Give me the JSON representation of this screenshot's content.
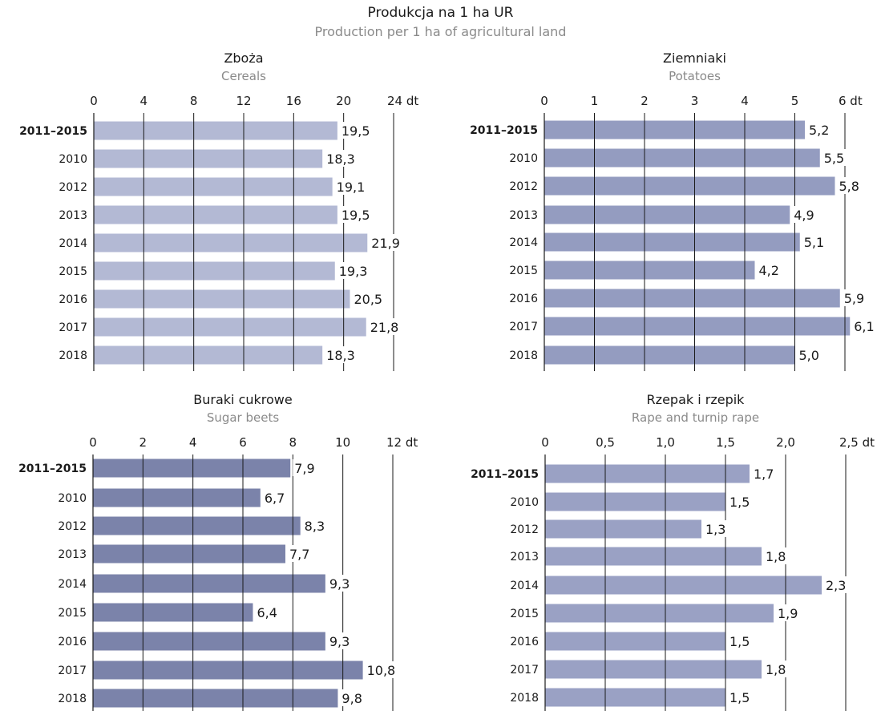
{
  "title": "Produkcja na 1 ha UR",
  "subtitle": "Production per 1 ha of agricultural land",
  "chart_data": [
    {
      "type": "bar",
      "orientation": "horizontal",
      "title": "Zboża",
      "subtitle": "Cereals",
      "unit": "dt",
      "categories": [
        "2011–2015",
        "2010",
        "2012",
        "2013",
        "2014",
        "2015",
        "2016",
        "2017",
        "2018"
      ],
      "values": [
        19.5,
        18.3,
        19.1,
        19.5,
        21.9,
        19.3,
        20.5,
        21.8,
        18.3
      ],
      "value_labels": [
        "19,5",
        "18,3",
        "19,1",
        "19,5",
        "21,9",
        "19,3",
        "20,5",
        "21,8",
        "18,3"
      ],
      "xlim": [
        0,
        24
      ],
      "ticks": [
        0,
        4,
        8,
        12,
        16,
        20,
        24
      ],
      "tick_labels": [
        "0",
        "4",
        "8",
        "12",
        "16",
        "20",
        "24 dt"
      ],
      "bar_color": "#b3b9d4",
      "grid": true
    },
    {
      "type": "bar",
      "orientation": "horizontal",
      "title": "Ziemniaki",
      "subtitle": "Potatoes",
      "unit": "dt",
      "categories": [
        "2011–2015",
        "2010",
        "2012",
        "2013",
        "2014",
        "2015",
        "2016",
        "2017",
        "2018"
      ],
      "values": [
        5.2,
        5.5,
        5.8,
        4.9,
        5.1,
        4.2,
        5.9,
        6.1,
        5.0
      ],
      "value_labels": [
        "5,2",
        "5,5",
        "5,8",
        "4,9",
        "5,1",
        "4,2",
        "5,9",
        "6,1",
        "5,0"
      ],
      "xlim": [
        0,
        6
      ],
      "ticks": [
        0,
        1,
        2,
        3,
        4,
        5,
        6
      ],
      "tick_labels": [
        "0",
        "1",
        "2",
        "3",
        "4",
        "5",
        "6 dt"
      ],
      "bar_color": "#949cc0",
      "grid": true
    },
    {
      "type": "bar",
      "orientation": "horizontal",
      "title": "Buraki cukrowe",
      "subtitle": "Sugar beets",
      "unit": "dt",
      "categories": [
        "2011–2015",
        "2010",
        "2012",
        "2013",
        "2014",
        "2015",
        "2016",
        "2017",
        "2018"
      ],
      "values": [
        7.9,
        6.7,
        8.3,
        7.7,
        9.3,
        6.4,
        9.3,
        10.8,
        9.8
      ],
      "value_labels": [
        "7,9",
        "6,7",
        "8,3",
        "7,7",
        "9,3",
        "6,4",
        "9,3",
        "10,8",
        "9,8"
      ],
      "xlim": [
        0,
        12
      ],
      "ticks": [
        0,
        2,
        4,
        6,
        8,
        10,
        12
      ],
      "tick_labels": [
        "0",
        "2",
        "4",
        "6",
        "8",
        "10",
        "12 dt"
      ],
      "bar_color": "#7b83aa",
      "grid": true
    },
    {
      "type": "bar",
      "orientation": "horizontal",
      "title": "Rzepak i rzepik",
      "subtitle": "Rape and turnip rape",
      "unit": "dt",
      "categories": [
        "2011–2015",
        "2010",
        "2012",
        "2013",
        "2014",
        "2015",
        "2016",
        "2017",
        "2018"
      ],
      "values": [
        1.7,
        1.5,
        1.3,
        1.8,
        2.3,
        1.9,
        1.5,
        1.8,
        1.5
      ],
      "value_labels": [
        "1,7",
        "1,5",
        "1,3",
        "1,8",
        "2,3",
        "1,9",
        "1,5",
        "1,8",
        "1,5"
      ],
      "xlim": [
        0,
        2.5
      ],
      "ticks": [
        0,
        0.5,
        1.0,
        1.5,
        2.0,
        2.5
      ],
      "tick_labels": [
        "0",
        "0,5",
        "1,0",
        "1,5",
        "2,0",
        "2,5 dt"
      ],
      "bar_color": "#9aa1c4",
      "grid": true
    }
  ]
}
